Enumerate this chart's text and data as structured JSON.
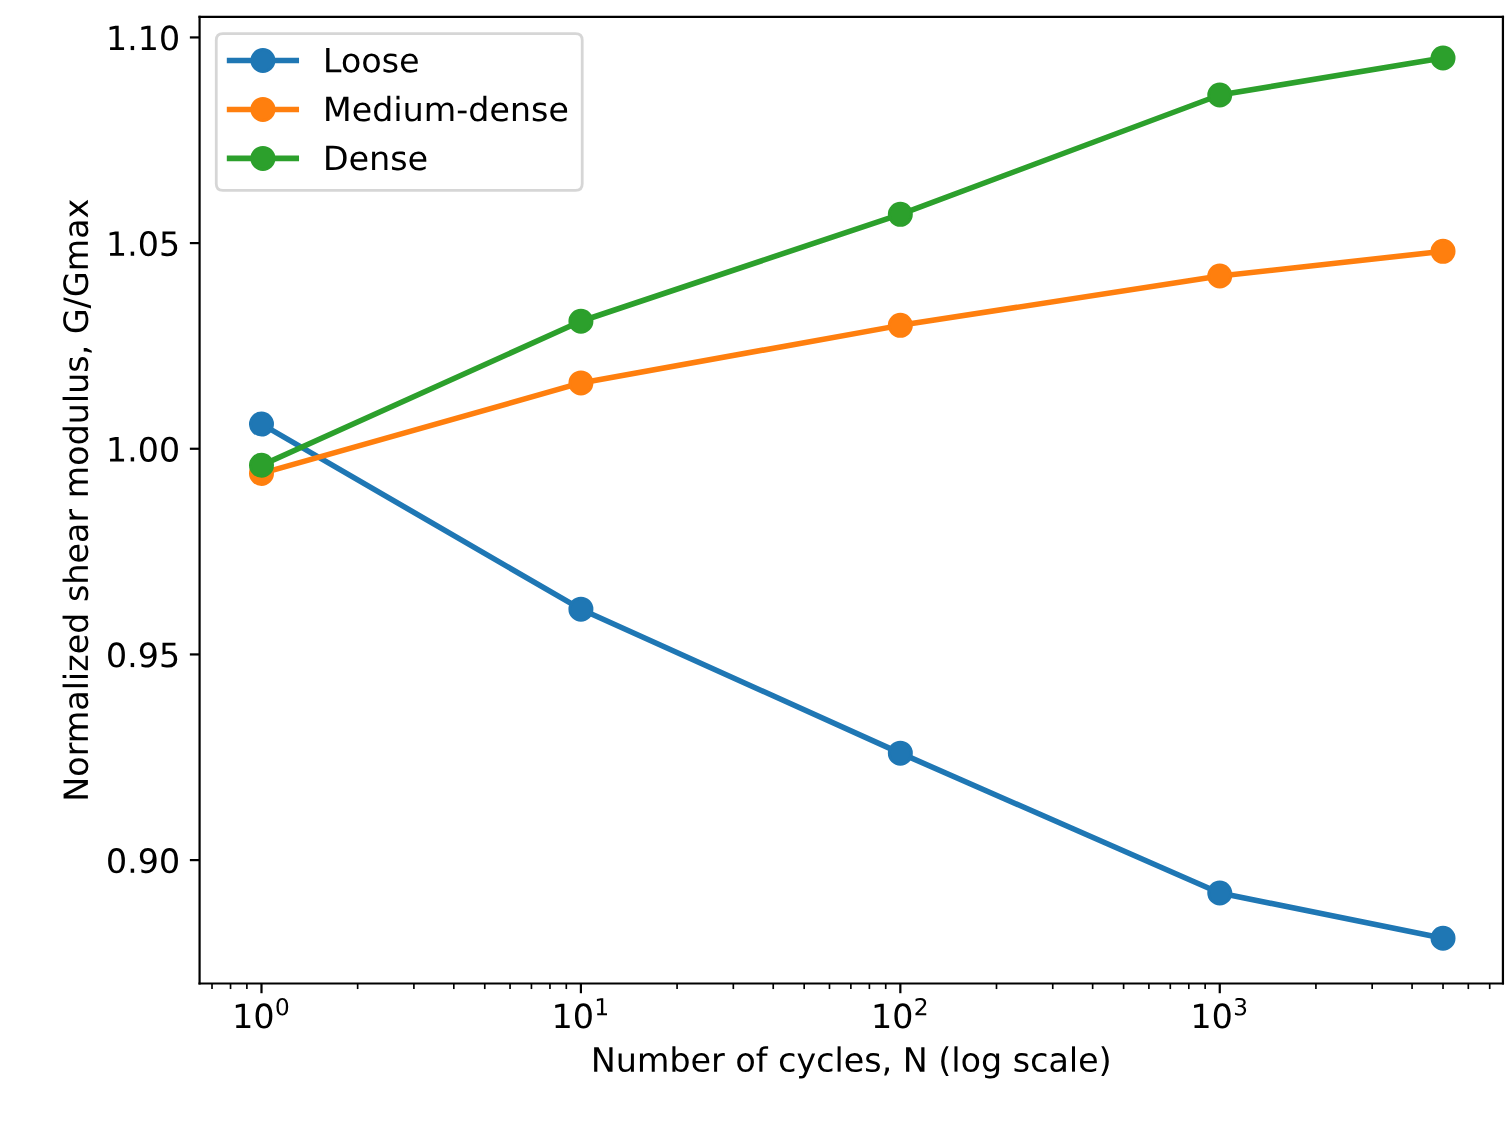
{
  "chart_data": {
    "type": "line",
    "xlabel": "Number of cycles, N (log scale)",
    "ylabel": "Normalized shear modulus, G/Gmax",
    "x": [
      1,
      10,
      100,
      1000,
      5000
    ],
    "series": [
      {
        "name": "Loose",
        "color": "#1f77b4",
        "values": [
          1.006,
          0.961,
          0.926,
          0.892,
          0.881
        ]
      },
      {
        "name": "Medium-dense",
        "color": "#ff7f0e",
        "values": [
          0.994,
          1.016,
          1.03,
          1.042,
          1.048
        ]
      },
      {
        "name": "Dense",
        "color": "#2ca02c",
        "values": [
          0.996,
          1.031,
          1.057,
          1.086,
          1.095
        ]
      }
    ],
    "log": "x",
    "xlim": [
      0.64,
      7700
    ],
    "ylim": [
      0.87,
      1.105
    ],
    "xticks": [
      {
        "value": 1,
        "label": "10$^{0}$"
      },
      {
        "value": 10,
        "label": "10$^{1}$"
      },
      {
        "value": 100,
        "label": "10$^{2}$"
      },
      {
        "value": 1000,
        "label": "10$^{3}$"
      }
    ],
    "yticks": [
      {
        "value": 0.9,
        "label": "0.90"
      },
      {
        "value": 0.95,
        "label": "0.95"
      },
      {
        "value": 1.0,
        "label": "1.00"
      },
      {
        "value": 1.05,
        "label": "1.05"
      },
      {
        "value": 1.1,
        "label": "1.10"
      }
    ],
    "marker": "circle",
    "line_style": "solid",
    "legend": "top left",
    "grid": false
  }
}
